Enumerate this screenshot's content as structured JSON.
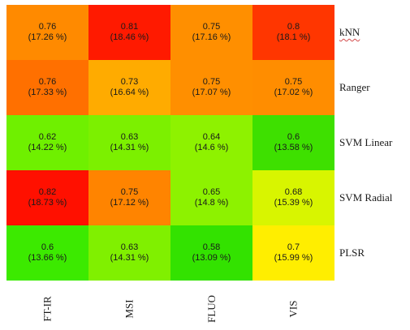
{
  "chart_data": {
    "type": "heatmap",
    "rows": [
      "kNN",
      "Ranger",
      "SVM Linear",
      "SVM Radial",
      "PLSR"
    ],
    "columns": [
      "FT-IR",
      "MSI",
      "FLUO",
      "VIS"
    ],
    "values": [
      [
        0.76,
        0.81,
        0.75,
        0.8
      ],
      [
        0.76,
        0.73,
        0.75,
        0.75
      ],
      [
        0.62,
        0.63,
        0.64,
        0.6
      ],
      [
        0.82,
        0.75,
        0.65,
        0.68
      ],
      [
        0.6,
        0.63,
        0.58,
        0.7
      ]
    ],
    "value_labels": [
      [
        "0.76",
        "0.81",
        "0.75",
        "0.8"
      ],
      [
        "0.76",
        "0.73",
        "0.75",
        "0.75"
      ],
      [
        "0.62",
        "0.63",
        "0.64",
        "0.6"
      ],
      [
        "0.82",
        "0.75",
        "0.65",
        "0.68"
      ],
      [
        "0.6",
        "0.63",
        "0.58",
        "0.7"
      ]
    ],
    "percent_labels": [
      [
        "(17.26 %)",
        "(18.46 %)",
        "(17.16 %)",
        "(18.1 %)"
      ],
      [
        "(17.33 %)",
        "(16.64 %)",
        "(17.07 %)",
        "(17.02 %)"
      ],
      [
        "(14.22 %)",
        "(14.31 %)",
        "(14.6 %)",
        "(13.58 %)"
      ],
      [
        "(18.73 %)",
        "(17.12 %)",
        "(14.8 %)",
        "(15.39 %)"
      ],
      [
        "(13.66 %)",
        "(14.31 %)",
        "(13.09 %)",
        "(15.99 %)"
      ]
    ],
    "cell_colors": [
      [
        "#ff8a00",
        "#ff1a00",
        "#ff8f00",
        "#ff3600"
      ],
      [
        "#ff7000",
        "#ffab00",
        "#ff8f00",
        "#ff8d00"
      ],
      [
        "#6ff000",
        "#7cf000",
        "#8ef200",
        "#3ee000"
      ],
      [
        "#ff1000",
        "#ff8400",
        "#8df200",
        "#d8f500"
      ],
      [
        "#3cea00",
        "#80f000",
        "#33e200",
        "#ffee00"
      ]
    ],
    "color_scale": {
      "low": "#33e200",
      "mid": "#ffee00",
      "high": "#ff1000"
    },
    "title": "",
    "xlabel": "",
    "ylabel": "",
    "grid": false,
    "legend": "none"
  }
}
